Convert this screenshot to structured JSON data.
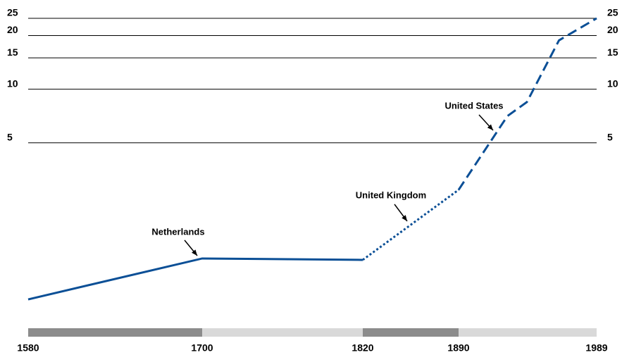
{
  "chart_data": {
    "type": "line",
    "xticks": [
      1580,
      1700,
      1820,
      1890,
      1989
    ],
    "xlim": [
      1580,
      1989
    ],
    "ylim": [
      0.48,
      25
    ],
    "yticks": [
      5,
      10,
      15,
      20,
      25
    ],
    "ylog": true,
    "grid": true,
    "series": [
      {
        "name": "Netherlands",
        "color": "#0b4f96",
        "dash": "solid",
        "x": [
          1580,
          1700,
          1820
        ],
        "values": [
          0.66,
          1.12,
          1.1
        ]
      },
      {
        "name": "United Kingdom",
        "color": "#0b4f96",
        "dash": "dotted",
        "x": [
          1820,
          1890
        ],
        "values": [
          1.1,
          2.72
        ]
      },
      {
        "name": "United States",
        "color": "#0b4f96",
        "dash": "dashed",
        "x": [
          1890,
          1925,
          1939,
          1962,
          1989
        ],
        "values": [
          2.72,
          7.06,
          8.47,
          18.8,
          25
        ]
      }
    ]
  }
}
